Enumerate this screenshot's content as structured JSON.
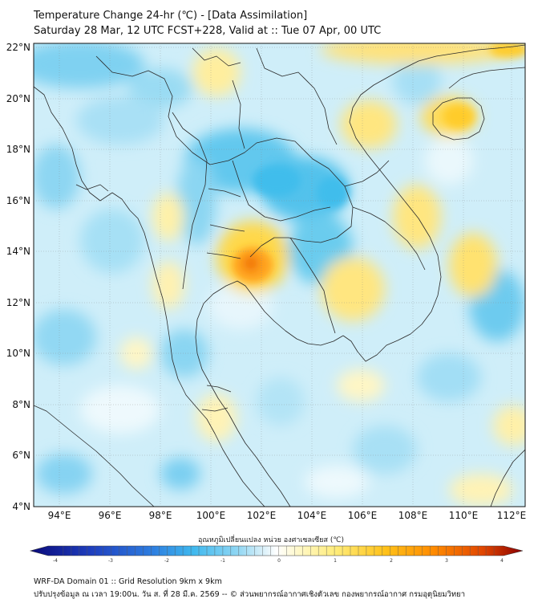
{
  "title_line1": "Temperature Change 24-hr (℃) - [Data Assimilation]",
  "title_line2": "Saturday 28 Mar, 12 UTC FCST+228, Valid at :: Tue 07 Apr, 00 UTC",
  "lat_ticks": [
    "22°N",
    "20°N",
    "18°N",
    "16°N",
    "14°N",
    "12°N",
    "10°N",
    "8°N",
    "6°N",
    "4°N"
  ],
  "lon_ticks": [
    "94°E",
    "96°E",
    "98°E",
    "100°E",
    "102°E",
    "104°E",
    "106°E",
    "108°E",
    "110°E",
    "112°E"
  ],
  "colorbar": {
    "label": "อุณหภูมิเปลี่ยนแปลง หน่วย องศาเซลเซียส (℃)",
    "min": -4,
    "max": 4,
    "tick_labels": [
      "-4",
      "-3",
      "-2",
      "-1",
      "0",
      "1",
      "2",
      "3",
      "4"
    ],
    "colors": [
      "#0a0a7a",
      "#1f3fbf",
      "#2e7fe0",
      "#3fb8ee",
      "#8fd6f3",
      "#d2eefa",
      "#ffffff",
      "#fff6b0",
      "#ffe04a",
      "#ffb400",
      "#ff7a00",
      "#d83a00",
      "#8a0000"
    ]
  },
  "footer_line1": "WRF-DA Domain 01 :: Grid Resolution 9km x 9km",
  "footer_line2": "ปรับปรุงข้อมูล ณ เวลา 19:00น. วัน ส. ที่ 28 มี.ค. 2569 -- © ส่วนพยากรณ์อากาศเชิงตัวเลข กองพยากรณ์อากาศ กรมอุตุนิยมวิทยา"
}
